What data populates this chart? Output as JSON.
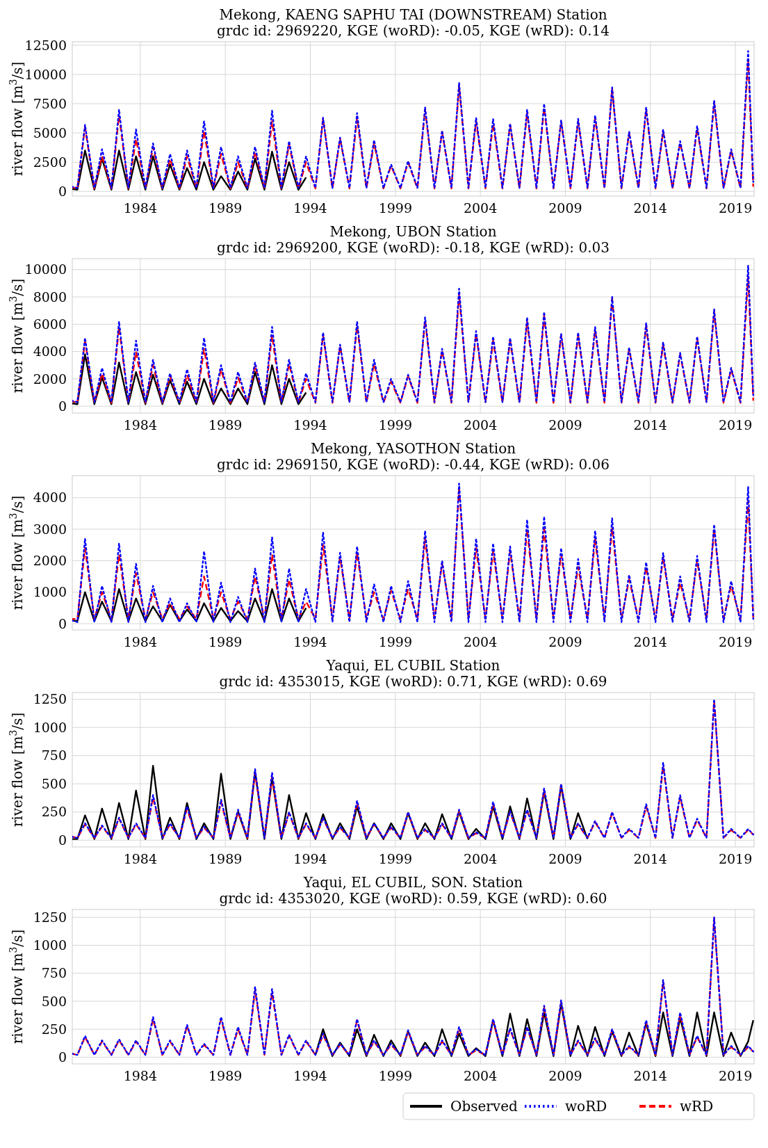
{
  "chart_data": [
    {
      "type": "line",
      "title": "Mekong, KAENG SAPHU TAI (DOWNSTREAM) Station",
      "subtitle": "grdc id: 2969220, KGE (woRD): -0.05, KGE (wRD): 0.14",
      "ylabel": "river flow [m$^{3}$/s]",
      "x": [
        1980,
        1980.3,
        1980.75,
        1981.3,
        1981.75,
        1982.3,
        1982.75,
        1983.3,
        1983.75,
        1984.3,
        1984.75,
        1985.3,
        1985.75,
        1986.3,
        1986.75,
        1987.3,
        1987.75,
        1988.3,
        1988.75,
        1989.3,
        1989.75,
        1990.3,
        1990.75,
        1991.3,
        1991.75,
        1992.3,
        1992.75,
        1993.3,
        1993.75,
        1994.3,
        1994.75,
        1995.3,
        1995.75,
        1996.3,
        1996.75,
        1997.3,
        1997.75,
        1998.3,
        1998.75,
        1999.3,
        1999.75,
        2000.3,
        2000.75,
        2001.3,
        2001.75,
        2002.3,
        2002.75,
        2003.3,
        2003.75,
        2004.3,
        2004.75,
        2005.3,
        2005.75,
        2006.3,
        2006.75,
        2007.3,
        2007.75,
        2008.3,
        2008.75,
        2009.3,
        2009.75,
        2010.3,
        2010.75,
        2011.3,
        2011.75,
        2012.3,
        2012.75,
        2013.3,
        2013.75,
        2014.3,
        2014.75,
        2015.3,
        2015.75,
        2016.3,
        2016.75,
        2017.3,
        2017.75,
        2018.3,
        2018.75,
        2019.3,
        2019.75,
        2020.05
      ],
      "xlim": [
        1980,
        2020.1
      ],
      "xticks": [
        1984,
        1989,
        1994,
        1999,
        2004,
        2009,
        2014,
        2019
      ],
      "ylim": [
        -400,
        12800
      ],
      "yticks": [
        0,
        2500,
        5000,
        7500,
        10000,
        12500
      ],
      "grid": true,
      "legend": false,
      "series": [
        {
          "color": "#000000",
          "line_style": "solid",
          "values": [
            200,
            150,
            3500,
            150,
            2800,
            150,
            3500,
            150,
            3000,
            150,
            3000,
            150,
            2300,
            150,
            2000,
            150,
            2500,
            150,
            1300,
            150,
            1700,
            150,
            2800,
            150,
            3400,
            150,
            2500,
            150,
            1200,
            null,
            null,
            null,
            null,
            null,
            null,
            null,
            null,
            null,
            null,
            null,
            null,
            null,
            null,
            null,
            null,
            null,
            null,
            null,
            null,
            null,
            null,
            null,
            null,
            null,
            null,
            null,
            null,
            null,
            null,
            null,
            null,
            null,
            null,
            null,
            null,
            null,
            null,
            null,
            null,
            null,
            null,
            null,
            null,
            null,
            null,
            null,
            null,
            null,
            null,
            null,
            null,
            null
          ]
        },
        {
          "color": "#0000ff",
          "line_style": "dotted",
          "values": [
            400,
            300,
            5700,
            300,
            3600,
            300,
            7000,
            300,
            5300,
            300,
            4100,
            300,
            3200,
            300,
            3500,
            300,
            6000,
            300,
            3800,
            300,
            3000,
            300,
            3800,
            300,
            6900,
            300,
            4300,
            300,
            3000,
            300,
            6300,
            300,
            4600,
            300,
            6700,
            300,
            4400,
            300,
            2300,
            300,
            2600,
            300,
            7200,
            300,
            5200,
            300,
            9300,
            300,
            6300,
            300,
            6200,
            300,
            5800,
            300,
            7000,
            300,
            7500,
            300,
            6100,
            300,
            6200,
            300,
            6500,
            300,
            8900,
            300,
            5100,
            300,
            7200,
            300,
            5300,
            300,
            4300,
            300,
            5600,
            300,
            7800,
            300,
            3600,
            300,
            12000,
            800
          ]
        },
        {
          "color": "#ff0000",
          "line_style": "dashed",
          "values": [
            350,
            250,
            5500,
            250,
            3000,
            250,
            6500,
            250,
            4500,
            250,
            3800,
            250,
            2800,
            250,
            3000,
            250,
            5200,
            250,
            3200,
            250,
            2500,
            250,
            3400,
            250,
            6000,
            250,
            4000,
            250,
            2500,
            250,
            6200,
            250,
            4500,
            250,
            6300,
            250,
            4100,
            250,
            2200,
            250,
            2500,
            250,
            7000,
            250,
            5100,
            250,
            9000,
            250,
            6000,
            250,
            5800,
            250,
            5700,
            250,
            6700,
            250,
            7200,
            250,
            6000,
            250,
            6000,
            250,
            6300,
            250,
            8800,
            250,
            5000,
            250,
            7000,
            250,
            5100,
            250,
            4200,
            250,
            5400,
            250,
            7600,
            250,
            3500,
            250,
            11300,
            400
          ]
        }
      ]
    },
    {
      "type": "line",
      "title": "Mekong, UBON Station",
      "subtitle": "grdc id: 2969200, KGE (woRD): -0.18, KGE (wRD): 0.03",
      "ylabel": "river flow [m$^{3}$/s]",
      "x": [
        1980,
        1980.3,
        1980.75,
        1981.3,
        1981.75,
        1982.3,
        1982.75,
        1983.3,
        1983.75,
        1984.3,
        1984.75,
        1985.3,
        1985.75,
        1986.3,
        1986.75,
        1987.3,
        1987.75,
        1988.3,
        1988.75,
        1989.3,
        1989.75,
        1990.3,
        1990.75,
        1991.3,
        1991.75,
        1992.3,
        1992.75,
        1993.3,
        1993.75,
        1994.3,
        1994.75,
        1995.3,
        1995.75,
        1996.3,
        1996.75,
        1997.3,
        1997.75,
        1998.3,
        1998.75,
        1999.3,
        1999.75,
        2000.3,
        2000.75,
        2001.3,
        2001.75,
        2002.3,
        2002.75,
        2003.3,
        2003.75,
        2004.3,
        2004.75,
        2005.3,
        2005.75,
        2006.3,
        2006.75,
        2007.3,
        2007.75,
        2008.3,
        2008.75,
        2009.3,
        2009.75,
        2010.3,
        2010.75,
        2011.3,
        2011.75,
        2012.3,
        2012.75,
        2013.3,
        2013.75,
        2014.3,
        2014.75,
        2015.3,
        2015.75,
        2016.3,
        2016.75,
        2017.3,
        2017.75,
        2018.3,
        2018.75,
        2019.3,
        2019.75,
        2020.05
      ],
      "xlim": [
        1980,
        2020.1
      ],
      "xticks": [
        1984,
        1989,
        1994,
        1999,
        2004,
        2009,
        2014,
        2019
      ],
      "ylim": [
        -500,
        10800
      ],
      "yticks": [
        0,
        2000,
        4000,
        6000,
        8000,
        10000
      ],
      "grid": true,
      "legend": false,
      "series": [
        {
          "color": "#000000",
          "line_style": "solid",
          "values": [
            200,
            150,
            3800,
            150,
            2100,
            150,
            3200,
            150,
            2500,
            150,
            2300,
            150,
            1900,
            150,
            1800,
            150,
            2000,
            150,
            1300,
            150,
            1300,
            150,
            2500,
            150,
            3000,
            150,
            2000,
            150,
            1000,
            null,
            null,
            null,
            null,
            null,
            null,
            null,
            null,
            null,
            null,
            null,
            null,
            null,
            null,
            null,
            null,
            null,
            null,
            null,
            null,
            null,
            null,
            null,
            null,
            null,
            null,
            null,
            null,
            null,
            null,
            null,
            null,
            null,
            null,
            null,
            null,
            null,
            null,
            null,
            null,
            null,
            null,
            null,
            null,
            null,
            null,
            null,
            null,
            null,
            null,
            null,
            null,
            null
          ]
        },
        {
          "color": "#0000ff",
          "line_style": "dotted",
          "values": [
            400,
            300,
            5000,
            300,
            2800,
            300,
            6200,
            300,
            4800,
            300,
            3400,
            300,
            2400,
            300,
            2700,
            300,
            5000,
            300,
            3000,
            300,
            2500,
            300,
            3200,
            300,
            5800,
            300,
            3400,
            300,
            2400,
            300,
            5400,
            300,
            4500,
            300,
            6200,
            300,
            3400,
            300,
            2000,
            300,
            2300,
            300,
            6500,
            300,
            4200,
            300,
            8600,
            300,
            5500,
            300,
            5100,
            300,
            5000,
            300,
            6500,
            300,
            6900,
            300,
            5300,
            300,
            5400,
            300,
            5800,
            300,
            8000,
            300,
            4300,
            300,
            6100,
            300,
            4700,
            300,
            3900,
            300,
            5100,
            300,
            7100,
            300,
            2800,
            300,
            10300,
            800
          ]
        },
        {
          "color": "#ff0000",
          "line_style": "dashed",
          "values": [
            350,
            250,
            4800,
            250,
            2400,
            250,
            5800,
            250,
            4000,
            250,
            3000,
            250,
            2200,
            250,
            2300,
            250,
            4200,
            250,
            2700,
            250,
            2100,
            250,
            3000,
            250,
            5200,
            250,
            3100,
            250,
            2000,
            250,
            5200,
            250,
            4400,
            250,
            5900,
            250,
            3100,
            250,
            1800,
            250,
            2200,
            250,
            6300,
            250,
            4100,
            250,
            8200,
            250,
            5300,
            250,
            4800,
            250,
            4800,
            250,
            6200,
            250,
            6600,
            250,
            5200,
            250,
            5200,
            250,
            5600,
            250,
            7900,
            250,
            4200,
            250,
            5900,
            250,
            4500,
            250,
            3800,
            250,
            5000,
            250,
            6900,
            250,
            2700,
            250,
            9500,
            400
          ]
        }
      ]
    },
    {
      "type": "line",
      "title": "Mekong, YASOTHON Station",
      "subtitle": "grdc id: 2969150, KGE (woRD): -0.44, KGE (wRD): 0.06",
      "ylabel": "river flow [m$^{3}$/s]",
      "x": [
        1980,
        1980.3,
        1980.75,
        1981.3,
        1981.75,
        1982.3,
        1982.75,
        1983.3,
        1983.75,
        1984.3,
        1984.75,
        1985.3,
        1985.75,
        1986.3,
        1986.75,
        1987.3,
        1987.75,
        1988.3,
        1988.75,
        1989.3,
        1989.75,
        1990.3,
        1990.75,
        1991.3,
        1991.75,
        1992.3,
        1992.75,
        1993.3,
        1993.75,
        1994.3,
        1994.75,
        1995.3,
        1995.75,
        1996.3,
        1996.75,
        1997.3,
        1997.75,
        1998.3,
        1998.75,
        1999.3,
        1999.75,
        2000.3,
        2000.75,
        2001.3,
        2001.75,
        2002.3,
        2002.75,
        2003.3,
        2003.75,
        2004.3,
        2004.75,
        2005.3,
        2005.75,
        2006.3,
        2006.75,
        2007.3,
        2007.75,
        2008.3,
        2008.75,
        2009.3,
        2009.75,
        2010.3,
        2010.75,
        2011.3,
        2011.75,
        2012.3,
        2012.75,
        2013.3,
        2013.75,
        2014.3,
        2014.75,
        2015.3,
        2015.75,
        2016.3,
        2016.75,
        2017.3,
        2017.75,
        2018.3,
        2018.75,
        2019.3,
        2019.75,
        2020.05
      ],
      "xlim": [
        1980,
        2020.1
      ],
      "xticks": [
        1984,
        1989,
        1994,
        1999,
        2004,
        2009,
        2014,
        2019
      ],
      "ylim": [
        -200,
        4700
      ],
      "yticks": [
        0,
        1000,
        2000,
        3000,
        4000
      ],
      "grid": true,
      "legend": false,
      "series": [
        {
          "color": "#000000",
          "line_style": "solid",
          "values": [
            100,
            80,
            1000,
            80,
            700,
            80,
            1100,
            80,
            800,
            80,
            550,
            80,
            600,
            80,
            450,
            80,
            650,
            80,
            500,
            80,
            400,
            80,
            800,
            80,
            1100,
            80,
            800,
            80,
            500,
            null,
            null,
            null,
            null,
            null,
            null,
            null,
            null,
            null,
            null,
            null,
            null,
            null,
            null,
            null,
            null,
            null,
            null,
            null,
            null,
            null,
            null,
            null,
            null,
            null,
            null,
            null,
            null,
            null,
            null,
            null,
            null,
            null,
            null,
            null,
            null,
            null,
            null,
            null,
            null,
            null,
            null,
            null,
            null,
            null,
            null,
            null,
            null,
            null,
            null,
            null,
            null,
            null
          ]
        },
        {
          "color": "#0000ff",
          "line_style": "dotted",
          "values": [
            100,
            50,
            2700,
            50,
            1200,
            50,
            2550,
            50,
            1900,
            50,
            1200,
            50,
            800,
            50,
            650,
            50,
            2300,
            50,
            1300,
            50,
            850,
            50,
            1750,
            50,
            2750,
            50,
            1750,
            50,
            1100,
            50,
            2900,
            50,
            2250,
            50,
            2450,
            50,
            1250,
            50,
            1200,
            50,
            1350,
            50,
            2950,
            50,
            2000,
            50,
            4450,
            50,
            2700,
            50,
            2550,
            50,
            2450,
            50,
            3300,
            50,
            3400,
            50,
            2400,
            50,
            2050,
            50,
            2950,
            50,
            3350,
            50,
            1550,
            50,
            1950,
            50,
            2250,
            50,
            1500,
            50,
            2150,
            50,
            3150,
            50,
            1350,
            50,
            4350,
            150
          ]
        },
        {
          "color": "#ff0000",
          "line_style": "dashed",
          "values": [
            150,
            150,
            2400,
            150,
            1000,
            150,
            2200,
            150,
            1600,
            150,
            1000,
            150,
            650,
            150,
            550,
            150,
            1500,
            150,
            1000,
            150,
            700,
            150,
            1500,
            150,
            2200,
            150,
            1400,
            150,
            700,
            150,
            2500,
            150,
            2100,
            150,
            2250,
            150,
            1000,
            150,
            1050,
            150,
            1100,
            150,
            2700,
            150,
            1900,
            150,
            4300,
            150,
            2400,
            150,
            2300,
            150,
            2300,
            150,
            3000,
            150,
            3000,
            150,
            2200,
            150,
            1800,
            150,
            2700,
            150,
            3050,
            150,
            1400,
            150,
            1800,
            150,
            2100,
            150,
            1300,
            150,
            2000,
            150,
            3000,
            150,
            1200,
            150,
            3900,
            200
          ]
        }
      ]
    },
    {
      "type": "line",
      "title": "Yaqui, EL CUBIL Station",
      "subtitle": "grdc id: 4353015, KGE (woRD): 0.71, KGE (wRD): 0.69",
      "ylabel": "river flow [m$^{3}$/s]",
      "x": [
        1980,
        1980.3,
        1980.75,
        1981.3,
        1981.75,
        1982.3,
        1982.75,
        1983.3,
        1983.75,
        1984.3,
        1984.75,
        1985.3,
        1985.75,
        1986.3,
        1986.75,
        1987.3,
        1987.75,
        1988.3,
        1988.75,
        1989.3,
        1989.75,
        1990.3,
        1990.75,
        1991.3,
        1991.75,
        1992.3,
        1992.75,
        1993.3,
        1993.75,
        1994.3,
        1994.75,
        1995.3,
        1995.75,
        1996.3,
        1996.75,
        1997.3,
        1997.75,
        1998.3,
        1998.75,
        1999.3,
        1999.75,
        2000.3,
        2000.75,
        2001.3,
        2001.75,
        2002.3,
        2002.75,
        2003.3,
        2003.75,
        2004.3,
        2004.75,
        2005.3,
        2005.75,
        2006.3,
        2006.75,
        2007.3,
        2007.75,
        2008.3,
        2008.75,
        2009.3,
        2009.75,
        2010.3,
        2010.75,
        2011.3,
        2011.75,
        2012.3,
        2012.75,
        2013.3,
        2013.75,
        2014.3,
        2014.75,
        2015.3,
        2015.75,
        2016.3,
        2016.75,
        2017.3,
        2017.75,
        2018.3,
        2018.75,
        2019.3,
        2019.75,
        2020.05
      ],
      "xlim": [
        1980,
        2020.1
      ],
      "xticks": [
        1984,
        1989,
        1994,
        1999,
        2004,
        2009,
        2014,
        2019
      ],
      "ylim": [
        -60,
        1310
      ],
      "yticks": [
        0,
        250,
        500,
        750,
        1000,
        1250
      ],
      "grid": true,
      "legend": false,
      "series": [
        {
          "color": "#000000",
          "line_style": "solid",
          "values": [
            10,
            10,
            220,
            10,
            280,
            10,
            330,
            10,
            440,
            10,
            660,
            10,
            200,
            10,
            330,
            10,
            150,
            10,
            590,
            10,
            250,
            10,
            610,
            10,
            550,
            10,
            400,
            10,
            240,
            10,
            230,
            10,
            150,
            10,
            300,
            10,
            150,
            10,
            150,
            10,
            240,
            10,
            150,
            10,
            230,
            10,
            250,
            10,
            100,
            10,
            300,
            10,
            300,
            10,
            370,
            10,
            430,
            10,
            480,
            10,
            240,
            10,
            null,
            null,
            null,
            null,
            null,
            null,
            null,
            null,
            null,
            null,
            null,
            null,
            null,
            null,
            null,
            null,
            null,
            null,
            null,
            null
          ]
        },
        {
          "color": "#0000ff",
          "line_style": "dotted",
          "values": [
            30,
            20,
            150,
            20,
            130,
            20,
            200,
            20,
            150,
            20,
            400,
            20,
            150,
            20,
            300,
            20,
            120,
            20,
            360,
            20,
            270,
            20,
            630,
            20,
            600,
            20,
            250,
            20,
            150,
            20,
            200,
            20,
            120,
            20,
            350,
            20,
            150,
            20,
            120,
            20,
            250,
            20,
            100,
            20,
            150,
            20,
            270,
            20,
            70,
            20,
            340,
            20,
            260,
            20,
            270,
            20,
            460,
            20,
            500,
            20,
            150,
            20,
            170,
            20,
            250,
            20,
            100,
            20,
            320,
            20,
            690,
            20,
            400,
            20,
            190,
            20,
            1250,
            20,
            100,
            20,
            100,
            50
          ]
        },
        {
          "color": "#ff0000",
          "line_style": "dashed",
          "values": [
            30,
            20,
            140,
            20,
            120,
            20,
            190,
            20,
            140,
            20,
            380,
            20,
            140,
            20,
            280,
            20,
            110,
            20,
            340,
            20,
            250,
            20,
            600,
            20,
            560,
            20,
            240,
            20,
            140,
            20,
            190,
            20,
            110,
            20,
            330,
            20,
            140,
            20,
            110,
            20,
            240,
            20,
            90,
            20,
            140,
            20,
            260,
            20,
            60,
            20,
            320,
            20,
            250,
            20,
            260,
            20,
            440,
            20,
            490,
            20,
            140,
            20,
            160,
            20,
            240,
            20,
            90,
            20,
            300,
            20,
            660,
            20,
            380,
            20,
            180,
            20,
            1240,
            20,
            90,
            20,
            90,
            50
          ]
        }
      ]
    },
    {
      "type": "line",
      "title": "Yaqui, EL CUBIL, SON. Station",
      "subtitle": "grdc id: 4353020, KGE (woRD): 0.59, KGE (wRD): 0.60",
      "ylabel": "river flow [m$^{3}$/s]",
      "x": [
        1980,
        1980.3,
        1980.75,
        1981.3,
        1981.75,
        1982.3,
        1982.75,
        1983.3,
        1983.75,
        1984.3,
        1984.75,
        1985.3,
        1985.75,
        1986.3,
        1986.75,
        1987.3,
        1987.75,
        1988.3,
        1988.75,
        1989.3,
        1989.75,
        1990.3,
        1990.75,
        1991.3,
        1991.75,
        1992.3,
        1992.75,
        1993.3,
        1993.75,
        1994.3,
        1994.75,
        1995.3,
        1995.75,
        1996.3,
        1996.75,
        1997.3,
        1997.75,
        1998.3,
        1998.75,
        1999.3,
        1999.75,
        2000.3,
        2000.75,
        2001.3,
        2001.75,
        2002.3,
        2002.75,
        2003.3,
        2003.75,
        2004.3,
        2004.75,
        2005.3,
        2005.75,
        2006.3,
        2006.75,
        2007.3,
        2007.75,
        2008.3,
        2008.75,
        2009.3,
        2009.75,
        2010.3,
        2010.75,
        2011.3,
        2011.75,
        2012.3,
        2012.75,
        2013.3,
        2013.75,
        2014.3,
        2014.75,
        2015.3,
        2015.75,
        2016.3,
        2016.75,
        2017.3,
        2017.75,
        2018.3,
        2018.75,
        2019.3,
        2019.75,
        2020.05
      ],
      "xlim": [
        1980,
        2020.1
      ],
      "xticks": [
        1984,
        1989,
        1994,
        1999,
        2004,
        2009,
        2014,
        2019
      ],
      "ylim": [
        -60,
        1320
      ],
      "yticks": [
        0,
        250,
        500,
        750,
        1000,
        1250
      ],
      "grid": true,
      "legend": "bottom right",
      "series": [
        {
          "name": "Observed",
          "color": "#000000",
          "line_style": "solid",
          "values": [
            null,
            null,
            null,
            null,
            null,
            null,
            null,
            null,
            null,
            null,
            null,
            null,
            null,
            null,
            null,
            null,
            null,
            null,
            null,
            null,
            null,
            null,
            null,
            null,
            null,
            null,
            null,
            null,
            null,
            20,
            250,
            10,
            130,
            10,
            250,
            10,
            200,
            10,
            150,
            10,
            230,
            10,
            130,
            10,
            250,
            10,
            210,
            10,
            80,
            10,
            330,
            10,
            390,
            10,
            340,
            10,
            400,
            10,
            480,
            10,
            280,
            10,
            270,
            10,
            230,
            10,
            220,
            10,
            300,
            10,
            400,
            10,
            350,
            10,
            400,
            10,
            400,
            10,
            220,
            10,
            140,
            330
          ]
        },
        {
          "name": "woRD",
          "color": "#0000ff",
          "line_style": "dotted",
          "values": [
            30,
            20,
            190,
            20,
            150,
            20,
            160,
            20,
            150,
            20,
            360,
            20,
            150,
            20,
            290,
            20,
            120,
            20,
            360,
            20,
            270,
            20,
            630,
            20,
            610,
            20,
            200,
            20,
            150,
            20,
            210,
            20,
            120,
            20,
            340,
            20,
            150,
            20,
            120,
            20,
            240,
            20,
            100,
            20,
            150,
            20,
            270,
            20,
            70,
            20,
            340,
            20,
            260,
            20,
            270,
            20,
            460,
            20,
            510,
            20,
            150,
            20,
            170,
            20,
            250,
            20,
            100,
            20,
            330,
            20,
            690,
            20,
            400,
            20,
            190,
            20,
            1250,
            20,
            100,
            20,
            100,
            50
          ]
        },
        {
          "name": "wRD",
          "color": "#ff0000",
          "line_style": "dashed",
          "values": [
            30,
            20,
            180,
            20,
            140,
            20,
            150,
            20,
            140,
            20,
            340,
            20,
            140,
            20,
            280,
            20,
            110,
            20,
            340,
            20,
            250,
            20,
            600,
            20,
            580,
            20,
            190,
            20,
            140,
            20,
            200,
            20,
            110,
            20,
            330,
            20,
            140,
            20,
            110,
            20,
            230,
            20,
            90,
            20,
            140,
            20,
            260,
            20,
            60,
            20,
            320,
            20,
            250,
            20,
            260,
            20,
            440,
            20,
            490,
            20,
            140,
            20,
            160,
            20,
            240,
            20,
            90,
            20,
            310,
            20,
            670,
            20,
            380,
            20,
            180,
            20,
            1240,
            20,
            90,
            20,
            90,
            50
          ]
        }
      ]
    }
  ]
}
